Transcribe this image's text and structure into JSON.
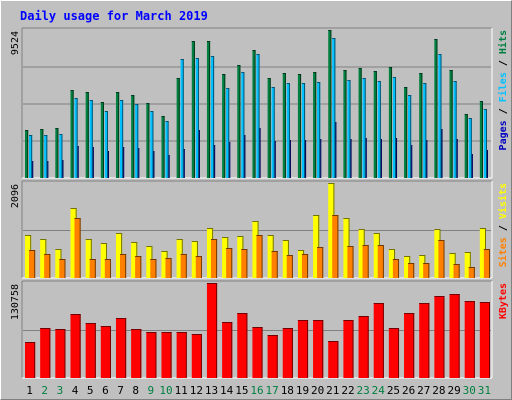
{
  "chart_data": {
    "type": "bar",
    "title": "Daily usage for March 2019",
    "categories": [
      "1",
      "2",
      "3",
      "4",
      "5",
      "6",
      "7",
      "8",
      "9",
      "10",
      "11",
      "12",
      "13",
      "14",
      "15",
      "16",
      "17",
      "18",
      "19",
      "20",
      "21",
      "22",
      "23",
      "24",
      "25",
      "26",
      "27",
      "28",
      "29",
      "30",
      "31"
    ],
    "weekend_days": [
      "2",
      "3",
      "9",
      "10",
      "16",
      "17",
      "23",
      "24",
      "30",
      "31"
    ],
    "panels": [
      {
        "name": "hits-files-pages",
        "max_label": "9524",
        "ymax": 9524,
        "right_label": [
          "Pages",
          "Files",
          "Hits"
        ],
        "series": [
          {
            "name": "Hits",
            "color": "#008040",
            "values": [
              3100,
              3140,
              3240,
              5690,
              5510,
              4890,
              5560,
              5330,
              4830,
              3990,
              6420,
              8810,
              8800,
              6720,
              7240,
              8240,
              6460,
              6730,
              6720,
              6800,
              9524,
              6940,
              7070,
              6910,
              7130,
              5840,
              6760,
              8930,
              6960,
              4120,
              4970
            ]
          },
          {
            "name": "Files",
            "color": "#00c0ff",
            "values": [
              2770,
              2790,
              2830,
              5150,
              5040,
              4320,
              5000,
              4780,
              4300,
              3680,
              7670,
              7690,
              7850,
              5780,
              6850,
              8010,
              5880,
              6130,
              6130,
              6200,
              9000,
              6290,
              6420,
              6260,
              6490,
              5340,
              6120,
              7960,
              6210,
              3870,
              4420
            ]
          },
          {
            "name": "Pages",
            "color": "#0000c0",
            "values": [
              1110,
              1110,
              1130,
              2050,
              2020,
              1730,
              2000,
              1910,
              1720,
              1470,
              1870,
              3080,
              2100,
              2310,
              2740,
              3200,
              2350,
              2450,
              2450,
              2480,
              3600,
              2520,
              2570,
              2500,
              2600,
              2140,
              2450,
              3180,
              2480,
              1550,
              1770
            ]
          }
        ]
      },
      {
        "name": "visits-sites",
        "max_label": "2096",
        "ymax": 2096,
        "right_label": [
          "Sites",
          "Visits"
        ],
        "series": [
          {
            "name": "Visits",
            "color": "#ffff00",
            "values": [
              950,
              860,
              650,
              1550,
              860,
              770,
              990,
              790,
              700,
              590,
              850,
              810,
              1100,
              910,
              920,
              1250,
              940,
              840,
              610,
              1380,
              2096,
              1320,
              1090,
              990,
              630,
              490,
              510,
              1090,
              560,
              580,
              1100
            ]
          },
          {
            "name": "Sites",
            "color": "#ff8000",
            "values": [
              610,
              540,
              410,
              1330,
              420,
              430,
              540,
              490,
              420,
              440,
              540,
              480,
              850,
              670,
              650,
              940,
              600,
              510,
              540,
              680,
              1400,
              700,
              730,
              730,
              420,
              340,
              320,
              840,
              300,
              250,
              640
            ]
          }
        ]
      },
      {
        "name": "kbytes",
        "max_label": "130758",
        "ymax": 130758,
        "right_label": [
          "KBytes"
        ],
        "series": [
          {
            "name": "KBytes",
            "color": "#ff0000",
            "values": [
              50000,
              68400,
              68000,
              87800,
              76000,
              71800,
              82000,
              67500,
              63800,
              63800,
              63200,
              60500,
              130758,
              77000,
              88800,
              70500,
              59000,
              68300,
              80200,
              80000,
              51000,
              79700,
              85500,
              103500,
              68500,
              89000,
              103500,
              113000,
              116000,
              105500,
              104000
            ]
          }
        ]
      }
    ]
  }
}
